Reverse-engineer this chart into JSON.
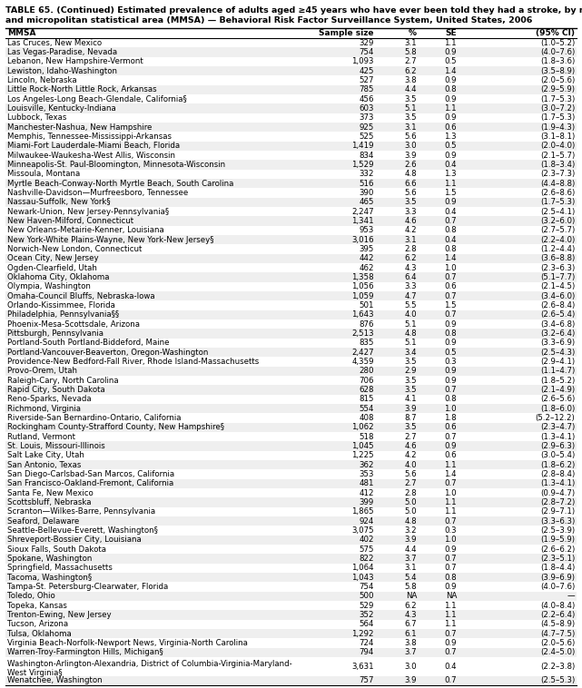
{
  "title_line1": "TABLE 65. (Continued) Estimated prevalence of adults aged ≥45 years who have ever been told they had a stroke, by metropolitan",
  "title_line2": "and micropolitan statistical area (MMSA) — Behavioral Risk Factor Surveillance System, United States, 2006",
  "col_headers": [
    "MMSA",
    "Sample size",
    "%",
    "SE",
    "(95% CI)"
  ],
  "rows": [
    [
      "Las Cruces, New Mexico",
      "329",
      "3.1",
      "1.1",
      "(1.0–5.2)"
    ],
    [
      "Las Vegas-Paradise, Nevada",
      "754",
      "5.8",
      "0.9",
      "(4.0–7.6)"
    ],
    [
      "Lebanon, New Hampshire-Vermont",
      "1,093",
      "2.7",
      "0.5",
      "(1.8–3.6)"
    ],
    [
      "Lewiston, Idaho-Washington",
      "425",
      "6.2",
      "1.4",
      "(3.5–8.9)"
    ],
    [
      "Lincoln, Nebraska",
      "527",
      "3.8",
      "0.9",
      "(2.0–5.6)"
    ],
    [
      "Little Rock-North Little Rock, Arkansas",
      "785",
      "4.4",
      "0.8",
      "(2.9–5.9)"
    ],
    [
      "Los Angeles-Long Beach-Glendale, California§",
      "456",
      "3.5",
      "0.9",
      "(1.7–5.3)"
    ],
    [
      "Louisville, Kentucky-Indiana",
      "603",
      "5.1",
      "1.1",
      "(3.0–7.2)"
    ],
    [
      "Lubbock, Texas",
      "373",
      "3.5",
      "0.9",
      "(1.7–5.3)"
    ],
    [
      "Manchester-Nashua, New Hampshire",
      "925",
      "3.1",
      "0.6",
      "(1.9–4.3)"
    ],
    [
      "Memphis, Tennessee-Mississippi-Arkansas",
      "525",
      "5.6",
      "1.3",
      "(3.1–8.1)"
    ],
    [
      "Miami-Fort Lauderdale-Miami Beach, Florida",
      "1,419",
      "3.0",
      "0.5",
      "(2.0–4.0)"
    ],
    [
      "Milwaukee-Waukesha-West Allis, Wisconsin",
      "834",
      "3.9",
      "0.9",
      "(2.1–5.7)"
    ],
    [
      "Minneapolis-St. Paul-Bloomington, Minnesota-Wisconsin",
      "1,529",
      "2.6",
      "0.4",
      "(1.8–3.4)"
    ],
    [
      "Missoula, Montana",
      "332",
      "4.8",
      "1.3",
      "(2.3–7.3)"
    ],
    [
      "Myrtle Beach-Conway-North Myrtle Beach, South Carolina",
      "516",
      "6.6",
      "1.1",
      "(4.4–8.8)"
    ],
    [
      "Nashville-Davidson—Murfreesboro, Tennessee",
      "390",
      "5.6",
      "1.5",
      "(2.6–8.6)"
    ],
    [
      "Nassau-Suffolk, New York§",
      "465",
      "3.5",
      "0.9",
      "(1.7–5.3)"
    ],
    [
      "Newark-Union, New Jersey-Pennsylvania§",
      "2,247",
      "3.3",
      "0.4",
      "(2.5–4.1)"
    ],
    [
      "New Haven-Milford, Connecticut",
      "1,341",
      "4.6",
      "0.7",
      "(3.2–6.0)"
    ],
    [
      "New Orleans-Metairie-Kenner, Louisiana",
      "953",
      "4.2",
      "0.8",
      "(2.7–5.7)"
    ],
    [
      "New York-White Plains-Wayne, New York-New Jersey§",
      "3,016",
      "3.1",
      "0.4",
      "(2.2–4.0)"
    ],
    [
      "Norwich-New London, Connecticut",
      "395",
      "2.8",
      "0.8",
      "(1.2–4.4)"
    ],
    [
      "Ocean City, New Jersey",
      "442",
      "6.2",
      "1.4",
      "(3.6–8.8)"
    ],
    [
      "Ogden-Clearfield, Utah",
      "462",
      "4.3",
      "1.0",
      "(2.3–6.3)"
    ],
    [
      "Oklahoma City, Oklahoma",
      "1,358",
      "6.4",
      "0.7",
      "(5.1–7.7)"
    ],
    [
      "Olympia, Washington",
      "1,056",
      "3.3",
      "0.6",
      "(2.1–4.5)"
    ],
    [
      "Omaha-Council Bluffs, Nebraska-Iowa",
      "1,059",
      "4.7",
      "0.7",
      "(3.4–6.0)"
    ],
    [
      "Orlando-Kissimmee, Florida",
      "501",
      "5.5",
      "1.5",
      "(2.6–8.4)"
    ],
    [
      "Philadelphia, Pennsylvania§§",
      "1,643",
      "4.0",
      "0.7",
      "(2.6–5.4)"
    ],
    [
      "Phoenix-Mesa-Scottsdale, Arizona",
      "876",
      "5.1",
      "0.9",
      "(3.4–6.8)"
    ],
    [
      "Pittsburgh, Pennsylvania",
      "2,513",
      "4.8",
      "0.8",
      "(3.2–6.4)"
    ],
    [
      "Portland-South Portland-Biddeford, Maine",
      "835",
      "5.1",
      "0.9",
      "(3.3–6.9)"
    ],
    [
      "Portland-Vancouver-Beaverton, Oregon-Washington",
      "2,427",
      "3.4",
      "0.5",
      "(2.5–4.3)"
    ],
    [
      "Providence-New Bedford-Fall River, Rhode Island-Massachusetts",
      "4,359",
      "3.5",
      "0.3",
      "(2.9–4.1)"
    ],
    [
      "Provo-Orem, Utah",
      "280",
      "2.9",
      "0.9",
      "(1.1–4.7)"
    ],
    [
      "Raleigh-Cary, North Carolina",
      "706",
      "3.5",
      "0.9",
      "(1.8–5.2)"
    ],
    [
      "Rapid City, South Dakota",
      "628",
      "3.5",
      "0.7",
      "(2.1–4.9)"
    ],
    [
      "Reno-Sparks, Nevada",
      "815",
      "4.1",
      "0.8",
      "(2.6–5.6)"
    ],
    [
      "Richmond, Virginia",
      "554",
      "3.9",
      "1.0",
      "(1.8–6.0)"
    ],
    [
      "Riverside-San Bernardino-Ontario, California",
      "408",
      "8.7",
      "1.8",
      "(5.2–12.2)"
    ],
    [
      "Rockingham County-Strafford County, New Hampshire§",
      "1,062",
      "3.5",
      "0.6",
      "(2.3–4.7)"
    ],
    [
      "Rutland, Vermont",
      "518",
      "2.7",
      "0.7",
      "(1.3–4.1)"
    ],
    [
      "St. Louis, Missouri-Illinois",
      "1,045",
      "4.6",
      "0.9",
      "(2.9–6.3)"
    ],
    [
      "Salt Lake City, Utah",
      "1,225",
      "4.2",
      "0.6",
      "(3.0–5.4)"
    ],
    [
      "San Antonio, Texas",
      "362",
      "4.0",
      "1.1",
      "(1.8–6.2)"
    ],
    [
      "San Diego-Carlsbad-San Marcos, California",
      "353",
      "5.6",
      "1.4",
      "(2.8–8.4)"
    ],
    [
      "San Francisco-Oakland-Fremont, California",
      "481",
      "2.7",
      "0.7",
      "(1.3–4.1)"
    ],
    [
      "Santa Fe, New Mexico",
      "412",
      "2.8",
      "1.0",
      "(0.9–4.7)"
    ],
    [
      "Scottsbluff, Nebraska",
      "399",
      "5.0",
      "1.1",
      "(2.8–7.2)"
    ],
    [
      "Scranton—Wilkes-Barre, Pennsylvania",
      "1,865",
      "5.0",
      "1.1",
      "(2.9–7.1)"
    ],
    [
      "Seaford, Delaware",
      "924",
      "4.8",
      "0.7",
      "(3.3–6.3)"
    ],
    [
      "Seattle-Bellevue-Everett, Washington§",
      "3,075",
      "3.2",
      "0.3",
      "(2.5–3.9)"
    ],
    [
      "Shreveport-Bossier City, Louisiana",
      "402",
      "3.9",
      "1.0",
      "(1.9–5.9)"
    ],
    [
      "Sioux Falls, South Dakota",
      "575",
      "4.4",
      "0.9",
      "(2.6–6.2)"
    ],
    [
      "Spokane, Washington",
      "822",
      "3.7",
      "0.7",
      "(2.3–5.1)"
    ],
    [
      "Springfield, Massachusetts",
      "1,064",
      "3.1",
      "0.7",
      "(1.8–4.4)"
    ],
    [
      "Tacoma, Washington§",
      "1,043",
      "5.4",
      "0.8",
      "(3.9–6.9)"
    ],
    [
      "Tampa-St. Petersburg-Clearwater, Florida",
      "754",
      "5.8",
      "0.9",
      "(4.0–7.6)"
    ],
    [
      "Toledo, Ohio",
      "500",
      "NA",
      "NA",
      "—"
    ],
    [
      "Topeka, Kansas",
      "529",
      "6.2",
      "1.1",
      "(4.0–8.4)"
    ],
    [
      "Trenton-Ewing, New Jersey",
      "352",
      "4.3",
      "1.1",
      "(2.2–6.4)"
    ],
    [
      "Tucson, Arizona",
      "564",
      "6.7",
      "1.1",
      "(4.5–8.9)"
    ],
    [
      "Tulsa, Oklahoma",
      "1,292",
      "6.1",
      "0.7",
      "(4.7–7.5)"
    ],
    [
      "Virginia Beach-Norfolk-Newport News, Virginia-North Carolina",
      "724",
      "3.8",
      "0.9",
      "(2.0–5.6)"
    ],
    [
      "Warren-Troy-Farmington Hills, Michigan§",
      "794",
      "3.7",
      "0.7",
      "(2.4–5.0)"
    ],
    [
      "Washington-Arlington-Alexandria, District of Columbia-Virginia-Maryland-\n  West Virginia§",
      "3,631",
      "3.0",
      "0.4",
      "(2.2–3.8)"
    ],
    [
      "Wenatchee, Washington",
      "757",
      "3.9",
      "0.7",
      "(2.5–5.3)"
    ]
  ],
  "title_fontsize": 6.8,
  "data_fontsize": 6.2,
  "header_fontsize": 6.5,
  "bg_color_odd": "#efefef",
  "bg_color_even": "#ffffff",
  "line_color": "#000000"
}
